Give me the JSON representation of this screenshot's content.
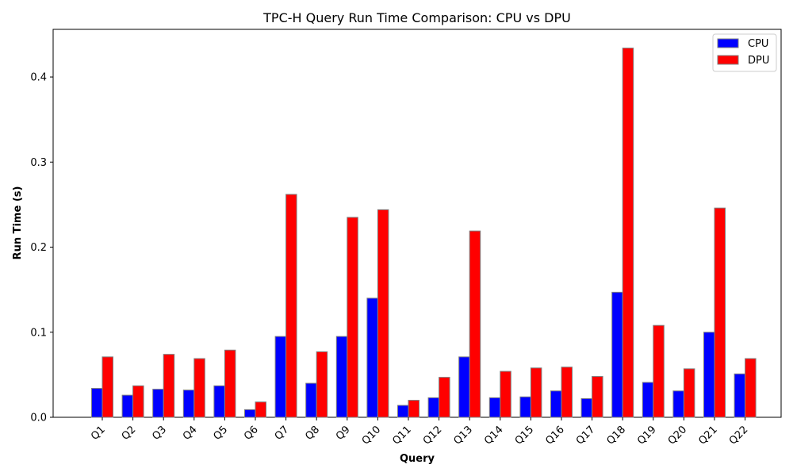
{
  "chart_data": {
    "type": "bar",
    "title": "TPC-H Query Run Time Comparison: CPU vs DPU",
    "xlabel": "Query",
    "ylabel": "Run Time (s)",
    "categories": [
      "Q1",
      "Q2",
      "Q3",
      "Q4",
      "Q5",
      "Q6",
      "Q7",
      "Q8",
      "Q9",
      "Q10",
      "Q11",
      "Q12",
      "Q13",
      "Q14",
      "Q15",
      "Q16",
      "Q17",
      "Q18",
      "Q19",
      "Q20",
      "Q21",
      "Q22"
    ],
    "series": [
      {
        "name": "CPU",
        "color": "#0000ff",
        "values": [
          0.034,
          0.026,
          0.033,
          0.032,
          0.037,
          0.009,
          0.095,
          0.04,
          0.095,
          0.14,
          0.014,
          0.023,
          0.071,
          0.023,
          0.024,
          0.031,
          0.022,
          0.147,
          0.041,
          0.031,
          0.1,
          0.051
        ]
      },
      {
        "name": "DPU",
        "color": "#ff0000",
        "values": [
          0.071,
          0.037,
          0.074,
          0.069,
          0.079,
          0.018,
          0.262,
          0.077,
          0.235,
          0.244,
          0.02,
          0.047,
          0.219,
          0.054,
          0.058,
          0.059,
          0.048,
          0.434,
          0.108,
          0.057,
          0.246,
          0.069
        ]
      }
    ],
    "ylim": [
      0,
      0.456
    ],
    "yticks": [
      "0.0",
      "0.1",
      "0.2",
      "0.3",
      "0.4"
    ],
    "legend_position": "top-right",
    "grid": false,
    "bar_edge_color": "#808080"
  }
}
